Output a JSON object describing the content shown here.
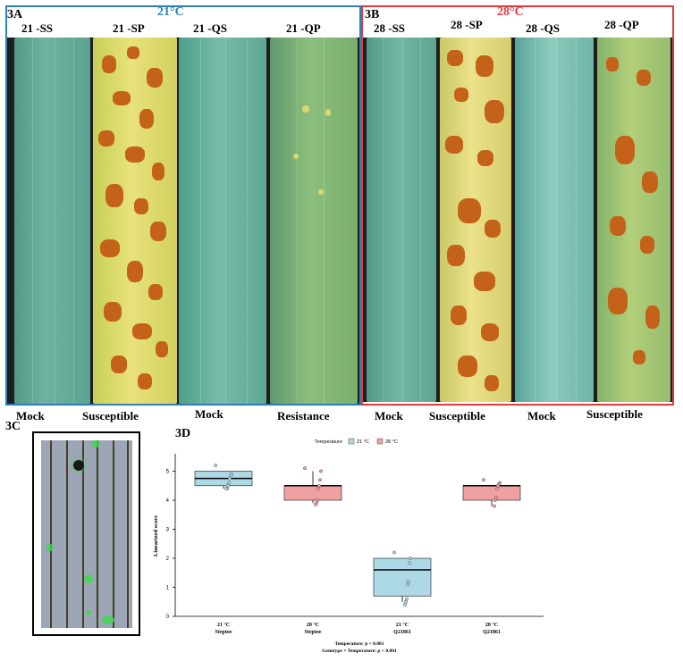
{
  "panel_3a": {
    "letter": "3A",
    "temperature": "21°C",
    "leaves": [
      "21 -SS",
      "21 -SP",
      "21 -QS",
      "21 -QP"
    ],
    "phenotypes": [
      "Mock",
      "Susceptible",
      "Mock",
      "Resistance"
    ]
  },
  "panel_3b": {
    "letter": "3B",
    "temperature": "28°C",
    "leaves": [
      "28 -SS",
      "28 -SP",
      "28 -QS",
      "28 -QP"
    ],
    "phenotypes": [
      "Mock",
      "Susceptible",
      "Mock",
      "Susceptible"
    ]
  },
  "panel_3c": {
    "letter": "3C"
  },
  "colors": {
    "panel_a_border": "#2f7fbf",
    "panel_b_border": "#e23b3b",
    "series_21": "#add8e6",
    "series_28": "#f0a0a0"
  },
  "chart_data": {
    "panel": "3D",
    "type": "box",
    "legend": {
      "title": "Temperature",
      "entries": [
        "21 °C",
        "28 °C"
      ],
      "placement": "top"
    },
    "ylabel": "Linearized score",
    "ylim": [
      0,
      5.6
    ],
    "yticks": [
      0,
      1,
      2,
      3,
      4,
      5
    ],
    "categories": [
      {
        "temp": "21 °C",
        "genotype": "Steptoe"
      },
      {
        "temp": "28 °C",
        "genotype": "Steptoe"
      },
      {
        "temp": "21 °C",
        "genotype": "Q21861"
      },
      {
        "temp": "28 °C",
        "genotype": "Q21861"
      }
    ],
    "boxes": [
      {
        "series": "21 °C",
        "q1": 4.5,
        "median": 4.75,
        "q3": 5.0,
        "whisker_low": 4.4,
        "whisker_high": 5.0,
        "points": [
          5.2,
          4.9,
          4.85,
          4.75,
          4.6,
          4.5,
          4.4,
          4.4
        ]
      },
      {
        "series": "28 °C",
        "q1": 4.0,
        "median": 4.5,
        "q3": 4.5,
        "whisker_low": 3.9,
        "whisker_high": 5.0,
        "points": [
          5.1,
          5.0,
          4.7,
          4.5,
          4.4,
          4.0,
          3.9,
          3.85
        ]
      },
      {
        "series": "21 °C",
        "q1": 0.7,
        "median": 1.6,
        "q3": 2.0,
        "whisker_low": 0.5,
        "whisker_high": 2.0,
        "points": [
          2.2,
          2.0,
          1.85,
          1.2,
          1.1,
          0.6,
          0.5,
          0.4
        ]
      },
      {
        "series": "28 °C",
        "q1": 4.0,
        "median": 4.5,
        "q3": 4.5,
        "whisker_low": 3.8,
        "whisker_high": 4.5,
        "points": [
          4.7,
          4.6,
          4.55,
          4.5,
          4.4,
          4.1,
          4.0,
          3.8
        ]
      }
    ],
    "annotations": [
      "Temperature: p < 0.001",
      "Genotype × Temperature: p < 0.001"
    ]
  }
}
